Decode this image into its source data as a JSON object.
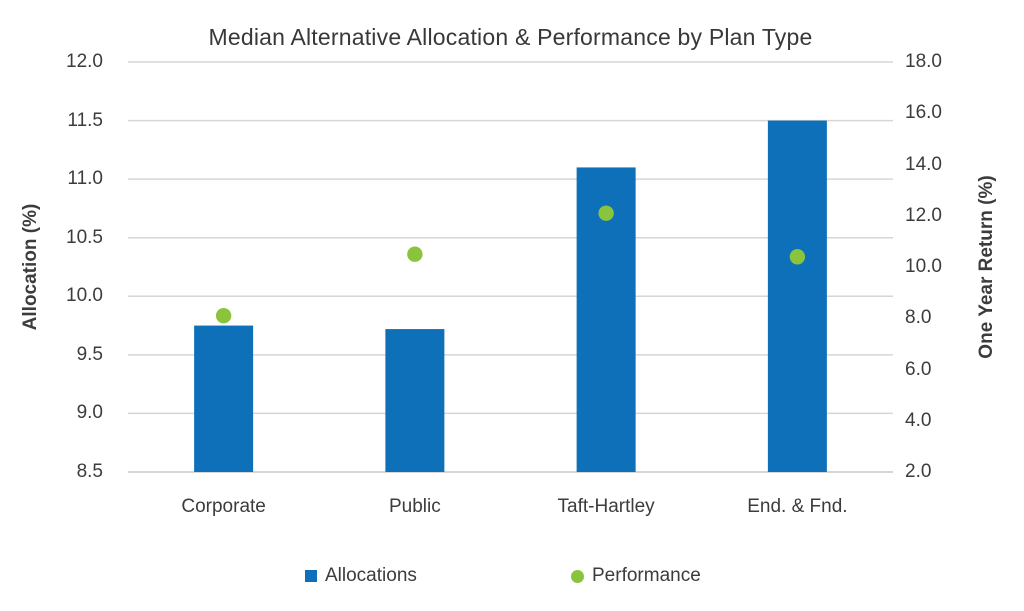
{
  "chart_data": {
    "type": "bar",
    "combo": "bar + point (dual axis)",
    "title": "Median Alternative Allocation & Performance by Plan Type",
    "categories": [
      "Corporate",
      "Public",
      "Taft-Hartley",
      "End. & Fnd."
    ],
    "series": [
      {
        "name": "Allocations",
        "type": "bar",
        "axis": "left",
        "values": [
          9.75,
          9.72,
          11.1,
          11.5
        ],
        "color": "#0d70b8"
      },
      {
        "name": "Performance",
        "type": "scatter",
        "axis": "right",
        "values": [
          8.1,
          10.5,
          12.1,
          10.4
        ],
        "color": "#8ac43d"
      }
    ],
    "left_axis": {
      "label": "Allocation (%)",
      "min": 8.5,
      "max": 12.0,
      "step": 0.5,
      "ticks": [
        "12.0",
        "11.5",
        "11.0",
        "10.5",
        "10.0",
        "9.5",
        "9.0",
        "8.5"
      ]
    },
    "right_axis": {
      "label": "One Year Return (%)",
      "min": 2.0,
      "max": 18.0,
      "step": 2.0,
      "ticks": [
        "18.0",
        "16.0",
        "14.0",
        "12.0",
        "10.0",
        "8.0",
        "6.0",
        "4.0",
        "2.0"
      ]
    },
    "grid": true,
    "legend_position": "bottom"
  },
  "legend": {
    "items": [
      {
        "label": "Allocations",
        "color": "#0d70b8",
        "shape": "square"
      },
      {
        "label": "Performance",
        "color": "#8ac43d",
        "shape": "circle"
      }
    ]
  },
  "colors": {
    "bar": "#0d70b8",
    "point": "#8ac43d",
    "gridline": "#d6d6d6",
    "axis_line": "#c9c9c9",
    "text": "#3c3c3c"
  }
}
